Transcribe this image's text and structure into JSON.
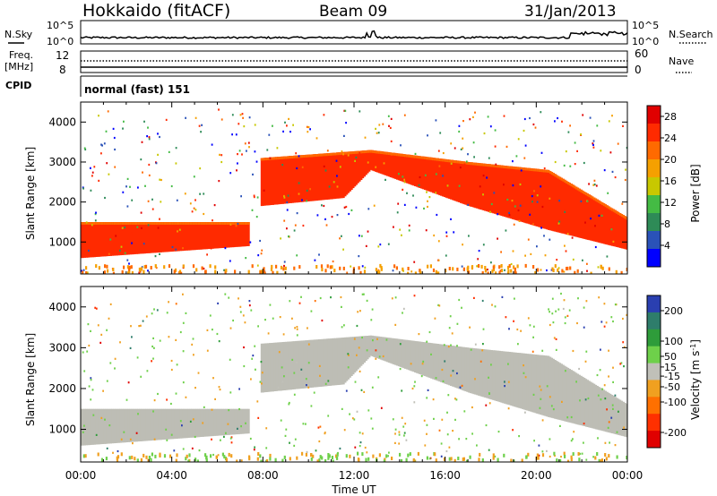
{
  "header": {
    "station": "Hokkaido (fitACF)",
    "beam": "Beam 09",
    "date": "31/Jan/2013"
  },
  "strip_labels": {
    "nsky": "N.Sky",
    "freq_line1": "Freq.",
    "freq_line2": "[MHz]",
    "cpid": "CPID",
    "nsearch": "N.Search",
    "nave": "Nave",
    "nsky_ticks": [
      "10^5",
      "10^0"
    ],
    "nsearch_ticks": [
      "10^5",
      "10^0"
    ],
    "freq_ticks": [
      "12",
      "8"
    ],
    "nave_ticks": [
      "60",
      "0"
    ],
    "cpid_text": "normal (fast) 151"
  },
  "colors": {
    "power_scale": [
      "#0000ff",
      "#2a52b8",
      "#2e8b57",
      "#44bb44",
      "#c8c800",
      "#f5a000",
      "#ff6a00",
      "#ff2a00",
      "#e00000"
    ],
    "velocity_scale": [
      "#2a3fb0",
      "#2e7d6b",
      "#2e9c3a",
      "#6ed04a",
      "#c0c0b8",
      "#f0a020",
      "#ff7000",
      "#ff3000",
      "#e00000"
    ],
    "ground_scatter": "#bdbdb5"
  },
  "chart_data": [
    {
      "type": "heatmap",
      "title": "Power",
      "ylabel": "Slant Range [km]",
      "xlabel": "Time UT",
      "x_ticks": [
        "00:00",
        "04:00",
        "08:00",
        "12:00",
        "16:00",
        "20:00",
        "00:00"
      ],
      "y_ticks": [
        1000,
        2000,
        3000,
        4000
      ],
      "ylim": [
        200,
        4500
      ],
      "colorbar_label": "Power [dB]",
      "colorbar_ticks": [
        4,
        8,
        12,
        16,
        20,
        24,
        28
      ],
      "colorbar_range": [
        0,
        30
      ],
      "scatter_regions": [
        {
          "t": [
            0.0,
            7.4
          ],
          "lower": [
            600,
            900
          ],
          "upper": [
            1500,
            1500
          ],
          "power": 27
        },
        {
          "t": [
            7.9,
            11.5
          ],
          "lower": [
            1900,
            2100
          ],
          "upper": [
            3100,
            3250
          ],
          "power": 26
        },
        {
          "t": [
            11.5,
            12.7
          ],
          "lower": [
            2100,
            2800
          ],
          "upper": [
            3250,
            3300
          ],
          "power": 26
        },
        {
          "t": [
            12.7,
            17.0
          ],
          "lower": [
            2800,
            1900
          ],
          "upper": [
            3300,
            3000
          ],
          "power": 27
        },
        {
          "t": [
            17.0,
            20.5
          ],
          "lower": [
            1900,
            1300
          ],
          "upper": [
            3000,
            2800
          ],
          "power": 27
        },
        {
          "t": [
            20.5,
            24.0
          ],
          "lower": [
            1300,
            800
          ],
          "upper": [
            2800,
            1600
          ],
          "power": 26
        }
      ]
    },
    {
      "type": "heatmap",
      "title": "Velocity",
      "ylabel": "Slant Range [km]",
      "xlabel": "Time UT",
      "x_ticks": [
        "00:00",
        "04:00",
        "08:00",
        "12:00",
        "16:00",
        "20:00",
        "00:00"
      ],
      "y_ticks": [
        1000,
        2000,
        3000,
        4000
      ],
      "ylim": [
        200,
        4500
      ],
      "colorbar_label": "Velocity [m s^-1]",
      "colorbar_ticks": [
        200,
        100,
        50,
        15,
        -15,
        -50,
        -100,
        -200
      ],
      "colorbar_range": [
        -250,
        250
      ],
      "dominant_value": "ground scatter (-15 to 15)"
    }
  ]
}
